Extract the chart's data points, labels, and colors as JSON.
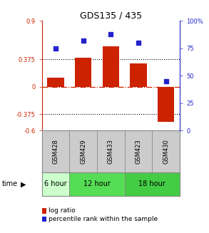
{
  "title": "GDS135 / 435",
  "samples": [
    "GSM428",
    "GSM429",
    "GSM433",
    "GSM423",
    "GSM430"
  ],
  "log_ratios": [
    0.12,
    0.4,
    0.55,
    0.32,
    -0.48
  ],
  "percentile_ranks": [
    75,
    82,
    88,
    80,
    45
  ],
  "ylim_left": [
    -0.6,
    0.9
  ],
  "ylim_right": [
    0,
    100
  ],
  "yticks_left": [
    -0.6,
    -0.375,
    0,
    0.375,
    0.9
  ],
  "yticks_right": [
    0,
    25,
    50,
    75,
    100
  ],
  "ytick_labels_left": [
    "-0.6",
    "-0.375",
    "0",
    "0.375",
    "0.9"
  ],
  "ytick_labels_right": [
    "0",
    "25",
    "50",
    "75",
    "100%"
  ],
  "hline_dotted": [
    0.375,
    -0.375
  ],
  "hline_dashed": 0,
  "bar_color": "#cc2200",
  "dot_color": "#2222cc",
  "dot_color_light": "#3333dd",
  "time_groups": [
    {
      "label": "6 hour",
      "samples": [
        "GSM428"
      ],
      "color": "#ccffcc"
    },
    {
      "label": "12 hour",
      "samples": [
        "GSM429",
        "GSM433"
      ],
      "color": "#55dd55"
    },
    {
      "label": "18 hour",
      "samples": [
        "GSM423",
        "GSM430"
      ],
      "color": "#44cc44"
    }
  ],
  "legend_bar_label": "log ratio",
  "legend_dot_label": "percentile rank within the sample",
  "time_label": "time",
  "bg_color": "#ffffff",
  "plot_bg": "#ffffff",
  "gsm_bg": "#cccccc",
  "border_color": "#888888"
}
